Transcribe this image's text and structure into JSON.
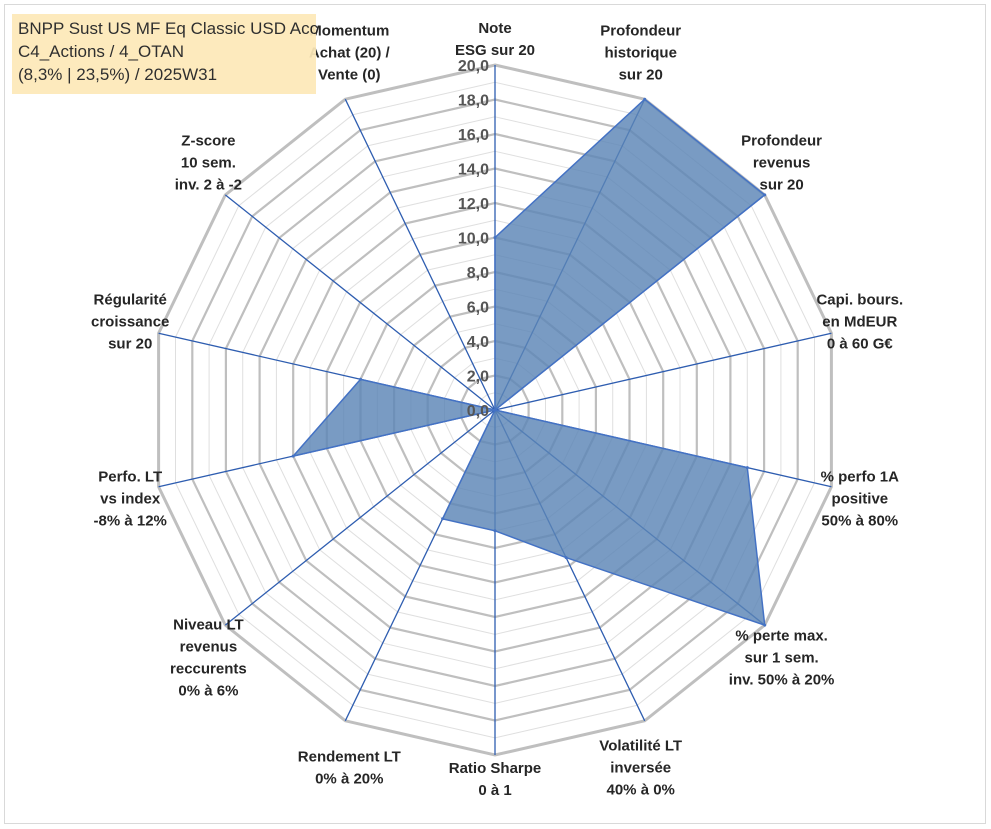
{
  "title_box": {
    "line1": "BNPP Sust US MF Eq Classic USD Acc",
    "line2": "C4_Actions / 4_OTAN",
    "line3": "(8,3% | 23,5%) / 2025W31"
  },
  "colors": {
    "fill": "#5b85b6",
    "stroke": "#4472c4",
    "ring": "#bfbfbf",
    "spoke": "#2e5db0",
    "title_bg": "#fde9b9"
  },
  "chart_data": {
    "type": "radar",
    "rlim": [
      0,
      20
    ],
    "tick_step": 2,
    "ticks": [
      "0,0",
      "2,0",
      "4,0",
      "6,0",
      "8,0",
      "10,0",
      "12,0",
      "14,0",
      "16,0",
      "18,0",
      "20,0"
    ],
    "categories": [
      [
        "Note",
        "ESG sur 20"
      ],
      [
        "Profondeur",
        "historique",
        "sur 20"
      ],
      [
        "Profondeur",
        "revenus",
        "sur 20"
      ],
      [
        "Capi. bours.",
        "en MdEUR",
        "0 à 60 G€"
      ],
      [
        "% perfo 1A",
        "positive",
        "50% à 80%"
      ],
      [
        "% perte max.",
        "sur 1 sem.",
        "inv. 50% à 20%"
      ],
      [
        "Volatilité LT",
        "inversée",
        "40% à 0%"
      ],
      [
        "Ratio Sharpe",
        "0 à 1"
      ],
      [
        "Rendement LT",
        "0% à 20%"
      ],
      [
        "Niveau LT",
        "revenus",
        "reccurents",
        "0% à 6%"
      ],
      [
        "Perfo. LT",
        "vs index",
        "-8% à 12%"
      ],
      [
        "Régularité",
        "croissance",
        "sur 20"
      ],
      [
        "Z-score",
        "10 sem.",
        "inv. 2 à -2"
      ],
      [
        "Momentum",
        "Achat (20) /",
        "Vente (0)"
      ]
    ],
    "series": [
      {
        "values": [
          10.0,
          20.0,
          20.0,
          0.0,
          15.0,
          20.0,
          9.5,
          7.0,
          7.0,
          0.0,
          12.0,
          8.0,
          0.0,
          0.0
        ]
      }
    ],
    "grid": true,
    "legend": "none"
  }
}
